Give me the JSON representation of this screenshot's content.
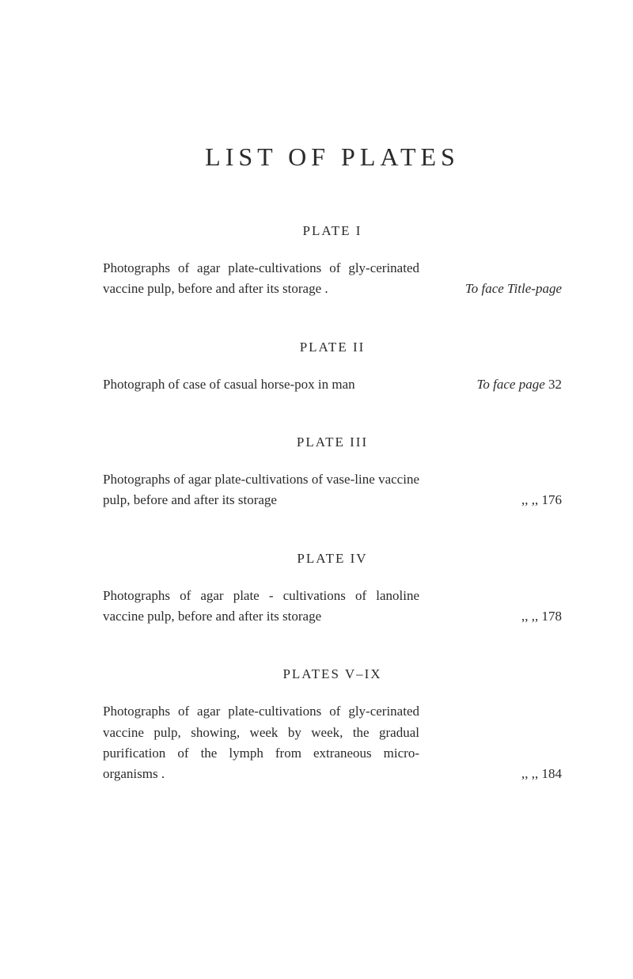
{
  "page": {
    "title": "LIST OF PLATES",
    "background_color": "#ffffff",
    "text_color": "#2a2a2a",
    "title_fontsize": 32,
    "heading_fontsize": 17,
    "body_fontsize": 17
  },
  "plates": {
    "plate1": {
      "heading": "PLATE I",
      "description": "Photographs of agar plate-cultivations of gly-cerinated vaccine pulp, before and after its storage .",
      "page_ref": "To face Title-page"
    },
    "plate2": {
      "heading": "PLATE II",
      "description": "Photograph of case of casual horse-pox in man",
      "page_ref_prefix": "To face page ",
      "page_ref_number": "32"
    },
    "plate3": {
      "heading": "PLATE III",
      "description": "Photographs of agar plate-cultivations of vase-line vaccine pulp, before and after its storage",
      "page_ref_prefix": ",,    ,,   ",
      "page_ref_number": "176"
    },
    "plate4": {
      "heading": "PLATE IV",
      "description": "Photographs of agar plate - cultivations of lanoline vaccine pulp, before and after its storage",
      "page_ref_prefix": ",,    ,,   ",
      "page_ref_number": "178"
    },
    "plate5": {
      "heading": "PLATES V–IX",
      "description": "Photographs of agar plate-cultivations of gly-cerinated vaccine pulp, showing, week by week, the gradual purification of the lymph from extraneous micro-organisms .",
      "page_ref_prefix": ",,    ,,   ",
      "page_ref_number": "184"
    }
  }
}
